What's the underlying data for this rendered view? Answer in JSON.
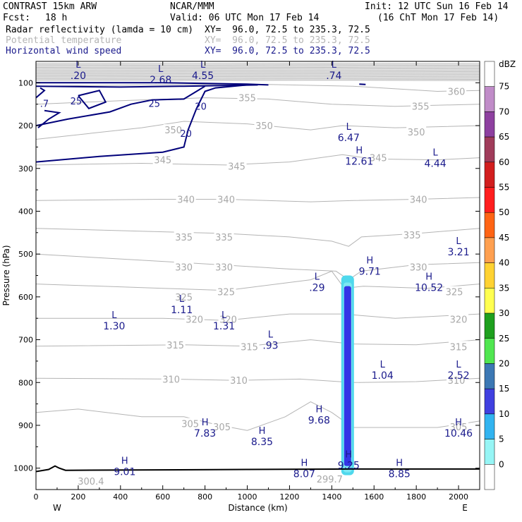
{
  "header": {
    "model": "CONTRAST 15km ARW",
    "fcst_label": "Fcst:",
    "fcst_value": "18 h",
    "center": "NCAR/MMM",
    "valid": "Valid: 06 UTC Mon 17 Feb 14",
    "init": "Init: 12 UTC Sun 16 Feb 14",
    "valid_local": "(16 ChT Mon 17 Feb 14)",
    "fields": [
      {
        "name": "Radar reflectivity (lamda = 10 cm)",
        "xy": "XY=  96.0, 72.5 to 235.3, 72.5",
        "color": "#000000"
      },
      {
        "name": "Potential temperature",
        "xy": "XY=  96.0, 72.5 to 235.3, 72.5",
        "color": "#b4b4b4"
      },
      {
        "name": "Horizontal wind speed",
        "xy": "XY=  96.0, 72.5 to 235.3, 72.5",
        "color": "#1a1a8c"
      }
    ]
  },
  "chart_data": {
    "type": "contour cross-section",
    "xlabel": "Distance (km)",
    "ylabel": "Pressure (hPa)",
    "xlim": [
      0,
      2100
    ],
    "ylim": [
      1050,
      50
    ],
    "x_ticks": [
      0,
      200,
      400,
      600,
      800,
      1000,
      1200,
      1400,
      1600,
      1800,
      2000
    ],
    "y_ticks": [
      100,
      200,
      300,
      400,
      500,
      600,
      700,
      800,
      900,
      1000
    ],
    "x_end_labels": {
      "left": "W",
      "right": "E"
    },
    "theta_labels": [
      {
        "x": 1990,
        "p": 120,
        "text": "360"
      },
      {
        "x": 1000,
        "p": 135,
        "text": "355"
      },
      {
        "x": 1820,
        "p": 155,
        "text": "355"
      },
      {
        "x": 650,
        "p": 210,
        "text": "350"
      },
      {
        "x": 1080,
        "p": 200,
        "text": "350"
      },
      {
        "x": 1800,
        "p": 215,
        "text": "350"
      },
      {
        "x": 600,
        "p": 280,
        "text": "345"
      },
      {
        "x": 950,
        "p": 295,
        "text": "345"
      },
      {
        "x": 1620,
        "p": 275,
        "text": "345"
      },
      {
        "x": 710,
        "p": 372,
        "text": "340"
      },
      {
        "x": 900,
        "p": 372,
        "text": "340"
      },
      {
        "x": 1810,
        "p": 372,
        "text": "340"
      },
      {
        "x": 700,
        "p": 460,
        "text": "335"
      },
      {
        "x": 890,
        "p": 460,
        "text": "335"
      },
      {
        "x": 1780,
        "p": 455,
        "text": "335"
      },
      {
        "x": 700,
        "p": 530,
        "text": "330"
      },
      {
        "x": 890,
        "p": 530,
        "text": "330"
      },
      {
        "x": 1810,
        "p": 530,
        "text": "330"
      },
      {
        "x": 700,
        "p": 600,
        "text": "325"
      },
      {
        "x": 900,
        "p": 588,
        "text": "325"
      },
      {
        "x": 1980,
        "p": 588,
        "text": "325"
      },
      {
        "x": 750,
        "p": 652,
        "text": "320"
      },
      {
        "x": 910,
        "p": 652,
        "text": "320"
      },
      {
        "x": 2000,
        "p": 652,
        "text": "320"
      },
      {
        "x": 660,
        "p": 712,
        "text": "315"
      },
      {
        "x": 1010,
        "p": 716,
        "text": "315"
      },
      {
        "x": 2000,
        "p": 716,
        "text": "315"
      },
      {
        "x": 640,
        "p": 792,
        "text": "310"
      },
      {
        "x": 960,
        "p": 795,
        "text": "310"
      },
      {
        "x": 1990,
        "p": 795,
        "text": "310"
      },
      {
        "x": 730,
        "p": 896,
        "text": "305"
      },
      {
        "x": 880,
        "p": 903,
        "text": "305"
      },
      {
        "x": 2000,
        "p": 903,
        "text": "305"
      },
      {
        "x": 260,
        "p": 1030,
        "text": "300.4"
      },
      {
        "x": 1390,
        "p": 1025,
        "text": "299.7"
      }
    ],
    "wind_labels": [
      {
        "x": 190,
        "p": 142,
        "text": "25"
      },
      {
        "x": 560,
        "p": 148,
        "text": "25"
      },
      {
        "x": 780,
        "p": 155,
        "text": "20"
      },
      {
        "x": 710,
        "p": 218,
        "text": "20"
      },
      {
        "x": 40,
        "p": 148,
        "text": ".7"
      }
    ],
    "extrema": [
      {
        "x": 200,
        "p": 65,
        "t": "L",
        "v": ".20"
      },
      {
        "x": 590,
        "p": 75,
        "t": "L",
        "v": "2.68"
      },
      {
        "x": 790,
        "p": 65,
        "t": "L",
        "v": "4.55"
      },
      {
        "x": 1410,
        "p": 65,
        "t": "L",
        "v": ".74"
      },
      {
        "x": 1480,
        "p": 210,
        "t": "L",
        "v": "6.47"
      },
      {
        "x": 1530,
        "p": 265,
        "t": "H",
        "v": "12.61"
      },
      {
        "x": 1890,
        "p": 270,
        "t": "L",
        "v": "4.44"
      },
      {
        "x": 2000,
        "p": 477,
        "t": "L",
        "v": "3.21"
      },
      {
        "x": 1580,
        "p": 522,
        "t": "H",
        "v": "9.71"
      },
      {
        "x": 1860,
        "p": 560,
        "t": "H",
        "v": "10.52"
      },
      {
        "x": 1330,
        "p": 560,
        "t": "L",
        "v": ".29"
      },
      {
        "x": 690,
        "p": 612,
        "t": "L",
        "v": "1.11"
      },
      {
        "x": 370,
        "p": 650,
        "t": "L",
        "v": "1.30"
      },
      {
        "x": 890,
        "p": 650,
        "t": "L",
        "v": "1.31"
      },
      {
        "x": 1110,
        "p": 695,
        "t": "L",
        "v": ".93"
      },
      {
        "x": 1640,
        "p": 765,
        "t": "L",
        "v": "1.04"
      },
      {
        "x": 2000,
        "p": 765,
        "t": "L",
        "v": "2.52"
      },
      {
        "x": 1340,
        "p": 870,
        "t": "H",
        "v": "9.68"
      },
      {
        "x": 800,
        "p": 900,
        "t": "H",
        "v": "7.83"
      },
      {
        "x": 1070,
        "p": 920,
        "t": "H",
        "v": "8.35"
      },
      {
        "x": 2000,
        "p": 900,
        "t": "H",
        "v": "10.46"
      },
      {
        "x": 1480,
        "p": 975,
        "t": "H",
        "v": "9.25"
      },
      {
        "x": 420,
        "p": 990,
        "t": "H",
        "v": "9.01"
      },
      {
        "x": 1270,
        "p": 995,
        "t": "H",
        "v": "8.07"
      },
      {
        "x": 1720,
        "p": 995,
        "t": "H",
        "v": "8.85"
      }
    ],
    "colorbar": {
      "unit": "dBZ",
      "levels": [
        "75",
        "70",
        "65",
        "60",
        "55",
        "50",
        "45",
        "40",
        "35",
        "30",
        "25",
        "20",
        "15",
        "10",
        "5",
        "0"
      ],
      "colors": [
        "#ffffff",
        "#c08cc8",
        "#8e40a0",
        "#a03c5a",
        "#d21e1e",
        "#ff1e1e",
        "#ff6414",
        "#ffa050",
        "#ffd232",
        "#ffff50",
        "#1ea01e",
        "#50e650",
        "#3c78b4",
        "#4040e0",
        "#32b4f0",
        "#96f5f5",
        "#ffffff"
      ]
    },
    "reflectivity_core": {
      "x": 1475,
      "p_top": 550,
      "p_bottom": 1000
    }
  }
}
